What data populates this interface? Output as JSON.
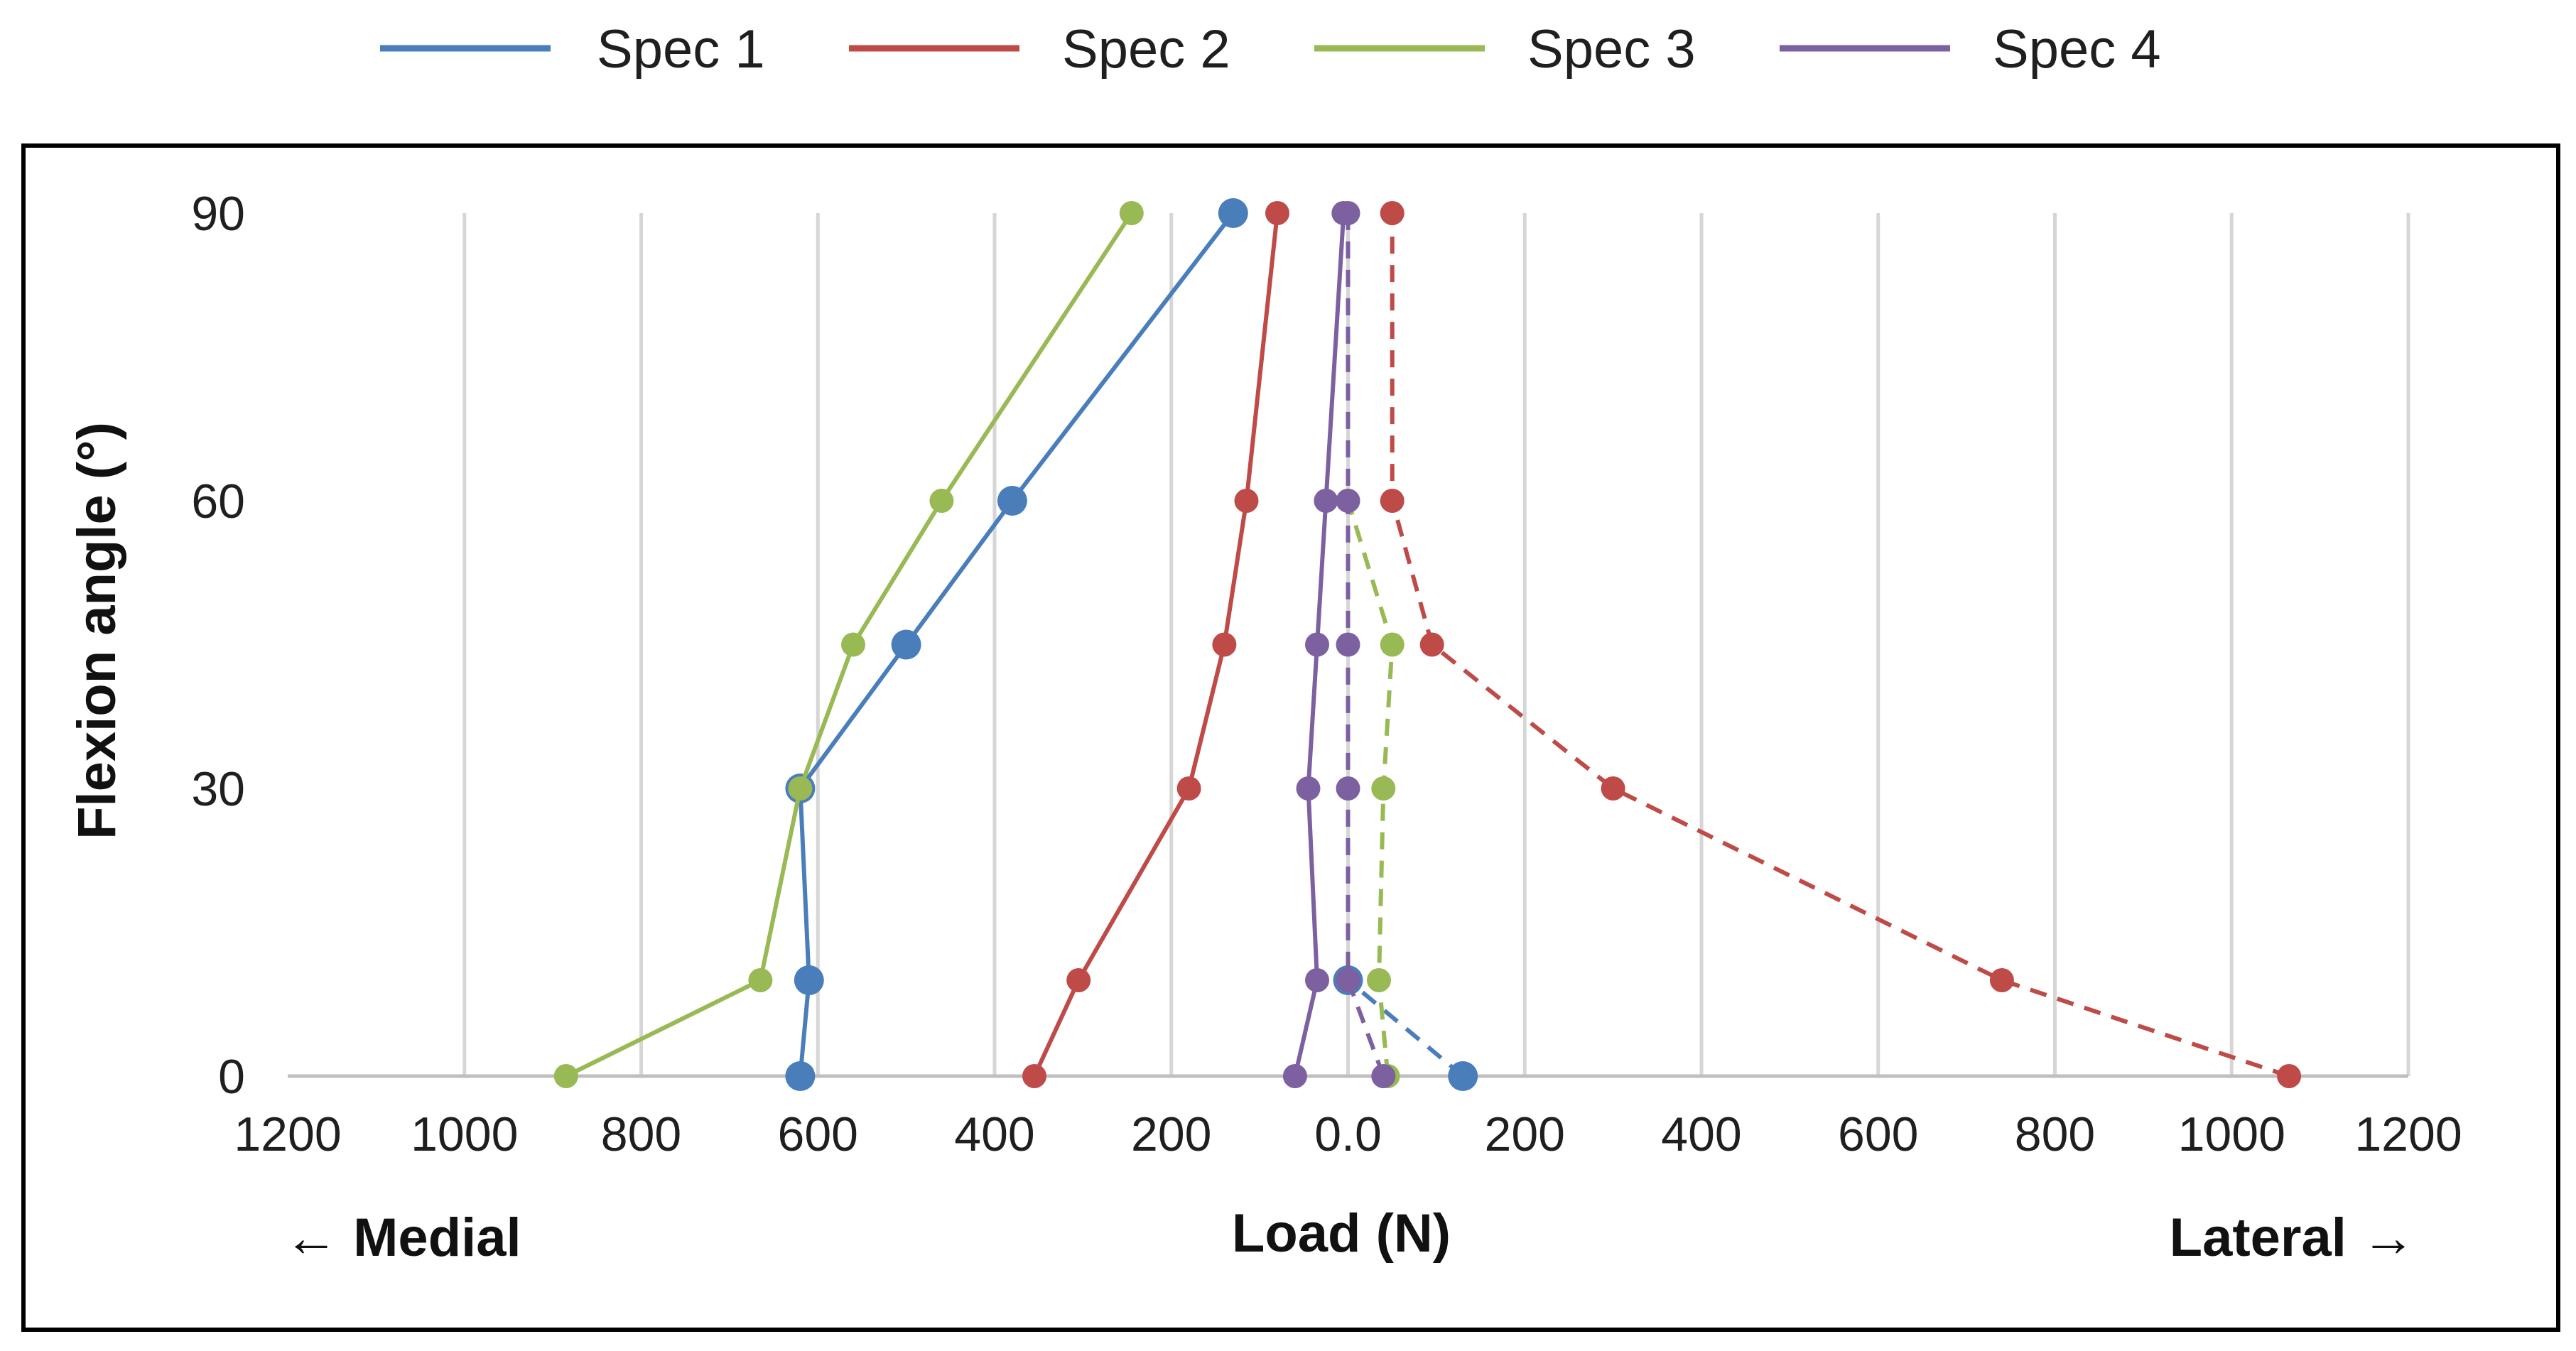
{
  "chart_data": {
    "type": "line",
    "title": "",
    "xlabel": "Load (N)",
    "ylabel": "Flexion angle (°)",
    "left_direction_label": "← Medial",
    "right_direction_label": "Lateral →",
    "xlim": [
      -1200,
      1200
    ],
    "ylim": [
      0,
      90
    ],
    "x_ticks": [
      -1200,
      -1000,
      -800,
      -600,
      -400,
      -200,
      0,
      200,
      400,
      600,
      800,
      1000,
      1200
    ],
    "x_tick_labels": [
      "1200",
      "1000",
      "800",
      "600",
      "400",
      "200",
      "0.0",
      "200",
      "400",
      "600",
      "800",
      "1000",
      "1200"
    ],
    "y_ticks": [
      0,
      30,
      60,
      90
    ],
    "y_tick_labels": [
      "0",
      "30",
      "60",
      "90"
    ],
    "grid": true,
    "legend_position": "top",
    "colors": {
      "Spec 1": "#4a7ebb",
      "Spec 2": "#be4b48",
      "Spec 3": "#98b954",
      "Spec 4": "#7d60a0"
    },
    "series": [
      {
        "name": "Spec 1",
        "side": "medial",
        "style": "solid",
        "marker": "large",
        "angles": [
          0,
          10,
          30,
          45,
          60,
          90
        ],
        "loads": [
          -620,
          -610,
          -620,
          -500,
          -380,
          -130
        ]
      },
      {
        "name": "Spec 1",
        "side": "lateral",
        "style": "dashed",
        "marker": "large",
        "angles": [
          0,
          10
        ],
        "loads": [
          130,
          0
        ]
      },
      {
        "name": "Spec 2",
        "side": "medial",
        "style": "solid",
        "marker": "small",
        "angles": [
          0,
          10,
          30,
          45,
          60,
          90
        ],
        "loads": [
          -355,
          -305,
          -180,
          -140,
          -115,
          -80
        ]
      },
      {
        "name": "Spec 2",
        "side": "lateral",
        "style": "dashed",
        "marker": "small",
        "angles": [
          0,
          10,
          30,
          45,
          60,
          90
        ],
        "loads": [
          1065,
          740,
          300,
          95,
          50,
          50
        ]
      },
      {
        "name": "Spec 3",
        "side": "medial",
        "style": "solid",
        "marker": "small",
        "angles": [
          0,
          10,
          30,
          45,
          60,
          90
        ],
        "loads": [
          -885,
          -665,
          -620,
          -560,
          -460,
          -245
        ]
      },
      {
        "name": "Spec 3",
        "side": "lateral",
        "style": "dashed",
        "marker": "small",
        "angles": [
          0,
          10,
          30,
          45,
          60
        ],
        "loads": [
          45,
          35,
          40,
          50,
          0
        ]
      },
      {
        "name": "Spec 4",
        "side": "medial",
        "style": "solid",
        "marker": "small",
        "angles": [
          0,
          10,
          30,
          45,
          60,
          90
        ],
        "loads": [
          -60,
          -35,
          -45,
          -35,
          -25,
          -5
        ]
      },
      {
        "name": "Spec 4",
        "side": "lateral",
        "style": "dashed",
        "marker": "small",
        "angles": [
          0,
          10,
          30,
          45,
          60,
          90
        ],
        "loads": [
          40,
          0,
          0,
          0,
          0,
          0
        ]
      }
    ]
  }
}
